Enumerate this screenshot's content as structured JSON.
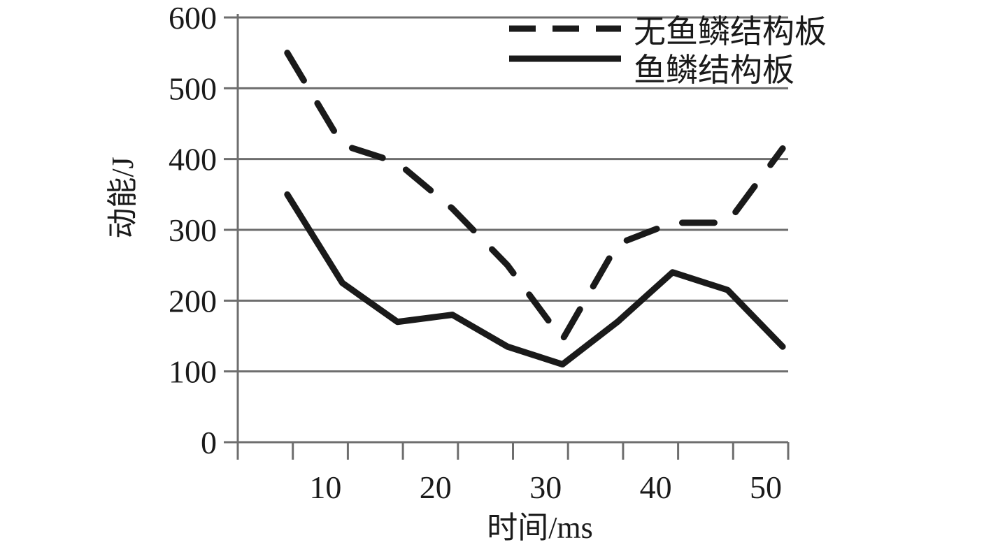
{
  "chart_data": {
    "type": "line",
    "title": "",
    "xlabel": "时间/ms",
    "ylabel": "动能/J",
    "xlim": [
      0,
      50
    ],
    "ylim": [
      0,
      600
    ],
    "xticks": [
      10,
      20,
      30,
      40,
      50
    ],
    "yticks": [
      0,
      100,
      200,
      300,
      400,
      500,
      600
    ],
    "grid": "horizontal",
    "legend_position": "top-right",
    "series": [
      {
        "name": "无鱼鳞结构板",
        "style": "dashed",
        "color": "#1a1a1a",
        "x": [
          5,
          10,
          15,
          20,
          25,
          30,
          35,
          40,
          45,
          50
        ],
        "y": [
          550,
          420,
          395,
          330,
          250,
          145,
          280,
          310,
          310,
          415
        ]
      },
      {
        "name": "鱼鳞结构板",
        "style": "solid",
        "color": "#1a1a1a",
        "x": [
          5,
          10,
          15,
          20,
          25,
          30,
          35,
          40,
          45,
          50
        ],
        "y": [
          350,
          225,
          170,
          180,
          135,
          110,
          170,
          240,
          215,
          135
        ]
      }
    ]
  }
}
